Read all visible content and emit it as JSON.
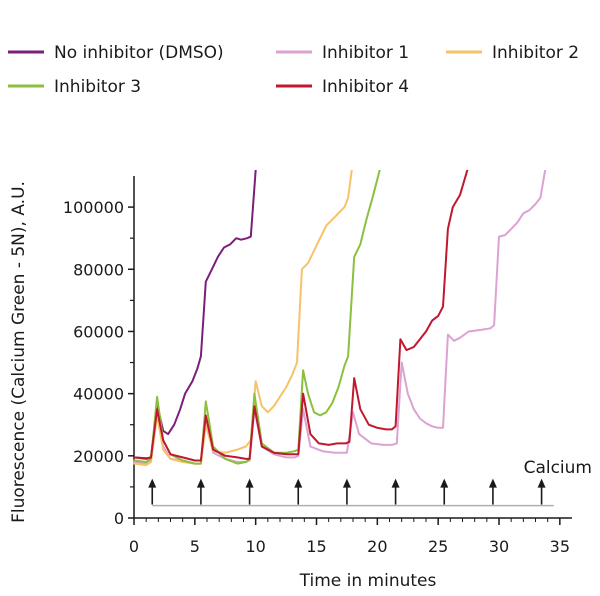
{
  "chart_data": {
    "type": "line",
    "xlabel": "Time in minutes",
    "ylabel": "Fluorescence (Calcium Green - 5N), A.U.",
    "xlim": [
      0,
      36
    ],
    "ylim": [
      0,
      110000
    ],
    "xticks": [
      0,
      5,
      10,
      15,
      20,
      25,
      30,
      35
    ],
    "yticks": [
      0,
      20000,
      40000,
      60000,
      80000,
      100000
    ],
    "xtick_labels": [
      "0",
      "5",
      "10",
      "15",
      "20",
      "25",
      "30",
      "35"
    ],
    "ytick_labels": [
      "0",
      "20000",
      "40000",
      "60000",
      "80000",
      "100000"
    ],
    "grid": false,
    "legend_position": "top",
    "annotation": {
      "label": "Calcium",
      "arrow_times": [
        1.5,
        5.5,
        9.5,
        13.5,
        17.5,
        21.5,
        25.5,
        29.5,
        33.5
      ],
      "baseline_y": 4000,
      "baseline_x": [
        1.5,
        34.5
      ]
    },
    "series": [
      {
        "name": "No inhibitor (DMSO)",
        "color": "#7b1f7a",
        "points": [
          [
            0,
            19500
          ],
          [
            1,
            19200
          ],
          [
            1.4,
            19500
          ],
          [
            1.9,
            36500
          ],
          [
            2.4,
            28000
          ],
          [
            2.8,
            27000
          ],
          [
            3.3,
            30000
          ],
          [
            3.8,
            35000
          ],
          [
            4.2,
            40000
          ],
          [
            4.8,
            44000
          ],
          [
            5.2,
            48000
          ],
          [
            5.5,
            52000
          ],
          [
            5.9,
            76000
          ],
          [
            6.4,
            80000
          ],
          [
            6.9,
            84000
          ],
          [
            7.4,
            87000
          ],
          [
            7.9,
            88000
          ],
          [
            8.4,
            90000
          ],
          [
            8.8,
            89500
          ],
          [
            9.3,
            90000
          ],
          [
            9.6,
            90500
          ],
          [
            10.0,
            112000
          ]
        ]
      },
      {
        "name": "Inhibitor 1",
        "color": "#dba3d1",
        "points": [
          [
            0,
            18000
          ],
          [
            1,
            17500
          ],
          [
            1.4,
            19000
          ],
          [
            1.9,
            34000
          ],
          [
            2.4,
            23000
          ],
          [
            3,
            19000
          ],
          [
            4,
            18500
          ],
          [
            5,
            17500
          ],
          [
            5.5,
            17500
          ],
          [
            5.9,
            32000
          ],
          [
            6.5,
            21000
          ],
          [
            7.5,
            19000
          ],
          [
            8.5,
            18000
          ],
          [
            9.2,
            18000
          ],
          [
            9.5,
            18500
          ],
          [
            9.9,
            35000
          ],
          [
            10.5,
            23000
          ],
          [
            11.5,
            20500
          ],
          [
            12.5,
            19500
          ],
          [
            13.2,
            19500
          ],
          [
            13.5,
            20000
          ],
          [
            13.9,
            35000
          ],
          [
            14.5,
            23000
          ],
          [
            15.5,
            21500
          ],
          [
            16.5,
            21000
          ],
          [
            17.2,
            21000
          ],
          [
            17.5,
            21000
          ],
          [
            18.0,
            34000
          ],
          [
            18.5,
            27000
          ],
          [
            19.5,
            24000
          ],
          [
            20.5,
            23500
          ],
          [
            21.2,
            23500
          ],
          [
            21.6,
            24000
          ],
          [
            22.0,
            50000
          ],
          [
            22.5,
            40000
          ],
          [
            23,
            35000
          ],
          [
            23.5,
            32000
          ],
          [
            24,
            30500
          ],
          [
            24.5,
            29500
          ],
          [
            25,
            29000
          ],
          [
            25.4,
            29000
          ],
          [
            25.8,
            59000
          ],
          [
            26.3,
            57000
          ],
          [
            26.8,
            58000
          ],
          [
            27.5,
            60000
          ],
          [
            28.5,
            60500
          ],
          [
            29.3,
            61000
          ],
          [
            29.6,
            62000
          ],
          [
            30.0,
            90500
          ],
          [
            30.5,
            91000
          ],
          [
            31,
            93000
          ],
          [
            31.5,
            95000
          ],
          [
            32,
            98000
          ],
          [
            32.5,
            99000
          ],
          [
            33,
            101000
          ],
          [
            33.4,
            103000
          ],
          [
            33.8,
            112000
          ]
        ]
      },
      {
        "name": "Inhibitor 2",
        "color": "#f5c36a",
        "points": [
          [
            0,
            17500
          ],
          [
            1,
            17000
          ],
          [
            1.4,
            18000
          ],
          [
            1.9,
            33000
          ],
          [
            2.4,
            22000
          ],
          [
            3,
            19000
          ],
          [
            4,
            18000
          ],
          [
            5,
            17500
          ],
          [
            5.5,
            17500
          ],
          [
            5.9,
            30000
          ],
          [
            6.5,
            21500
          ],
          [
            7.5,
            21000
          ],
          [
            8.5,
            22000
          ],
          [
            9.2,
            23000
          ],
          [
            9.6,
            25000
          ],
          [
            10.0,
            44000
          ],
          [
            10.5,
            36000
          ],
          [
            11,
            34000
          ],
          [
            11.5,
            36000
          ],
          [
            12,
            39000
          ],
          [
            12.5,
            42000
          ],
          [
            13,
            46000
          ],
          [
            13.4,
            50000
          ],
          [
            13.8,
            80000
          ],
          [
            14.3,
            82000
          ],
          [
            14.8,
            86000
          ],
          [
            15.3,
            90000
          ],
          [
            15.8,
            94000
          ],
          [
            16.3,
            96000
          ],
          [
            16.8,
            98000
          ],
          [
            17.3,
            100000
          ],
          [
            17.6,
            103000
          ],
          [
            17.9,
            112000
          ]
        ]
      },
      {
        "name": "Inhibitor 3",
        "color": "#8cbf3f",
        "points": [
          [
            0,
            18500
          ],
          [
            1,
            18000
          ],
          [
            1.4,
            19000
          ],
          [
            1.9,
            39000
          ],
          [
            2.4,
            25000
          ],
          [
            3,
            20500
          ],
          [
            4,
            18500
          ],
          [
            5,
            17500
          ],
          [
            5.5,
            17500
          ],
          [
            5.9,
            37500
          ],
          [
            6.5,
            23000
          ],
          [
            7.5,
            19000
          ],
          [
            8.5,
            17500
          ],
          [
            9.2,
            18000
          ],
          [
            9.5,
            19000
          ],
          [
            9.9,
            40000
          ],
          [
            10.5,
            24000
          ],
          [
            11.5,
            21000
          ],
          [
            12.5,
            21000
          ],
          [
            13.2,
            21500
          ],
          [
            13.5,
            22000
          ],
          [
            13.9,
            47500
          ],
          [
            14.3,
            40000
          ],
          [
            14.8,
            34000
          ],
          [
            15.3,
            33000
          ],
          [
            15.8,
            34000
          ],
          [
            16.3,
            37000
          ],
          [
            16.8,
            42000
          ],
          [
            17.3,
            49000
          ],
          [
            17.6,
            52000
          ],
          [
            18.1,
            84000
          ],
          [
            18.6,
            88000
          ],
          [
            19.1,
            96000
          ],
          [
            19.6,
            103000
          ],
          [
            20.2,
            112000
          ]
        ]
      },
      {
        "name": "Inhibitor 4",
        "color": "#c0182e",
        "points": [
          [
            0,
            19500
          ],
          [
            1,
            19000
          ],
          [
            1.4,
            19500
          ],
          [
            1.9,
            35000
          ],
          [
            2.4,
            25000
          ],
          [
            3,
            20500
          ],
          [
            4,
            19500
          ],
          [
            5,
            18500
          ],
          [
            5.5,
            18500
          ],
          [
            5.9,
            33000
          ],
          [
            6.5,
            22000
          ],
          [
            7.5,
            20000
          ],
          [
            8.5,
            19500
          ],
          [
            9.2,
            19000
          ],
          [
            9.5,
            19000
          ],
          [
            9.9,
            36000
          ],
          [
            10.5,
            23000
          ],
          [
            11.5,
            21000
          ],
          [
            12.5,
            20500
          ],
          [
            13.2,
            20500
          ],
          [
            13.5,
            20500
          ],
          [
            13.9,
            40000
          ],
          [
            14.5,
            27000
          ],
          [
            15.2,
            24000
          ],
          [
            16,
            23500
          ],
          [
            16.7,
            24000
          ],
          [
            17.4,
            24000
          ],
          [
            17.7,
            24500
          ],
          [
            18.1,
            45000
          ],
          [
            18.6,
            35000
          ],
          [
            19.3,
            30000
          ],
          [
            20,
            29000
          ],
          [
            20.7,
            28500
          ],
          [
            21.2,
            28500
          ],
          [
            21.5,
            29500
          ],
          [
            21.9,
            57500
          ],
          [
            22.4,
            54000
          ],
          [
            23,
            55000
          ],
          [
            23.5,
            57500
          ],
          [
            24,
            60000
          ],
          [
            24.5,
            63500
          ],
          [
            25,
            65000
          ],
          [
            25.4,
            68000
          ],
          [
            25.8,
            93000
          ],
          [
            26.2,
            100000
          ],
          [
            26.8,
            104000
          ],
          [
            27.4,
            112000
          ]
        ]
      }
    ]
  }
}
